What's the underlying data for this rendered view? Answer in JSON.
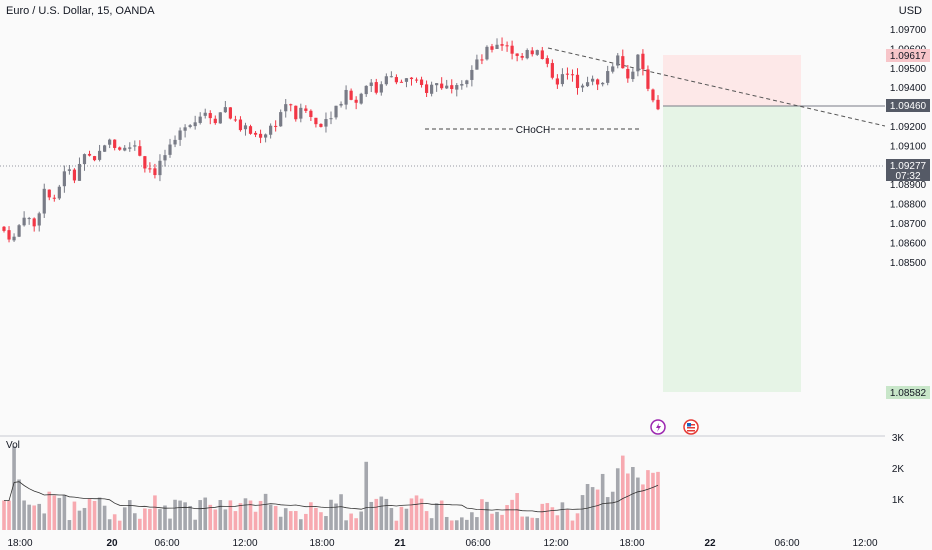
{
  "header": {
    "symbol": "Euro / U.S. Dollar, 15, OANDA",
    "currency": "USD"
  },
  "colors": {
    "up": "#787b86",
    "down": "#f23645",
    "background": "#fafafa",
    "stop_zone": "#fde8e8",
    "target_zone": "#e6f4e6",
    "stop_tag": "#f7c5c9",
    "target_tag": "#c8e6c9",
    "current_tag": "#555a66",
    "entry_tag": "#555a66"
  },
  "icons": [
    "lightning-event-icon",
    "us-flag-event-icon"
  ],
  "chart_data": {
    "type": "candlestick",
    "title": "Euro / U.S. Dollar, 15, OANDA",
    "unit": "USD",
    "y_ticks": [
      "1.09700",
      "1.09600",
      "1.09500",
      "1.09400",
      "1.09300",
      "1.09200",
      "1.09100",
      "1.09000",
      "1.08900",
      "1.08800",
      "1.08700",
      "1.08600",
      "1.08500"
    ],
    "ylim": [
      1.0845,
      1.0975
    ],
    "x_ticks": [
      "18:00",
      "20",
      "06:00",
      "12:00",
      "18:00",
      "21",
      "06:00",
      "12:00",
      "18:00",
      "22",
      "06:00",
      "12:00"
    ],
    "price_path": [
      [
        0,
        1.0866
      ],
      [
        2,
        1.0862
      ],
      [
        4,
        1.0875
      ],
      [
        6,
        1.0868
      ],
      [
        8,
        1.0887
      ],
      [
        10,
        1.088
      ],
      [
        12,
        1.0898
      ],
      [
        14,
        1.0893
      ],
      [
        16,
        1.0905
      ],
      [
        18,
        1.09
      ],
      [
        20,
        1.0912
      ],
      [
        22,
        1.091
      ],
      [
        24,
        1.0908
      ],
      [
        26,
        1.0911
      ],
      [
        28,
        1.09
      ],
      [
        30,
        1.0897
      ],
      [
        32,
        1.0905
      ],
      [
        34,
        1.091
      ],
      [
        36,
        1.0922
      ],
      [
        38,
        1.0923
      ],
      [
        40,
        1.0928
      ],
      [
        42,
        1.0924
      ],
      [
        44,
        1.093
      ],
      [
        46,
        1.0921
      ],
      [
        48,
        1.0918
      ],
      [
        50,
        1.0915
      ],
      [
        52,
        1.0917
      ],
      [
        54,
        1.0922
      ],
      [
        56,
        1.0932
      ],
      [
        58,
        1.0925
      ],
      [
        60,
        1.0928
      ],
      [
        62,
        1.0921
      ],
      [
        64,
        1.0924
      ],
      [
        66,
        1.093
      ],
      [
        68,
        1.0938
      ],
      [
        70,
        1.0932
      ],
      [
        72,
        1.0943
      ],
      [
        74,
        1.0938
      ],
      [
        76,
        1.0948
      ],
      [
        78,
        1.0941
      ],
      [
        80,
        1.0945
      ],
      [
        82,
        1.0941
      ],
      [
        84,
        1.0939
      ],
      [
        86,
        1.0942
      ],
      [
        88,
        1.094
      ],
      [
        90,
        1.0944
      ],
      [
        92,
        1.0945
      ],
      [
        94,
        1.0952
      ],
      [
        96,
        1.0958
      ],
      [
        98,
        1.0963
      ],
      [
        100,
        1.0962
      ],
      [
        102,
        1.0955
      ],
      [
        104,
        1.096
      ],
      [
        106,
        1.0958
      ],
      [
        108,
        1.095
      ],
      [
        110,
        1.0944
      ],
      [
        112,
        1.0946
      ],
      [
        114,
        1.0942
      ],
      [
        116,
        1.0945
      ],
      [
        118,
        1.094
      ],
      [
        120,
        1.0948
      ],
      [
        122,
        1.0958
      ],
      [
        124,
        1.0945
      ],
      [
        126,
        1.0955
      ],
      [
        128,
        1.0942
      ],
      [
        130,
        1.0927
      ]
    ],
    "volume_ticks": [
      "3K",
      "2K",
      "1K"
    ],
    "volume_ylim": [
      0,
      3000
    ],
    "annotations": {
      "choch": {
        "text": "CHoCH",
        "price": 1.09392
      },
      "trendline": {
        "from_price": 1.09635,
        "to_price": 1.09396
      }
    },
    "position": {
      "type": "short",
      "entry": "1.09460",
      "stop": "1.09617",
      "target": "1.08582"
    },
    "current_price": "1.09277",
    "countdown": "07:32"
  }
}
